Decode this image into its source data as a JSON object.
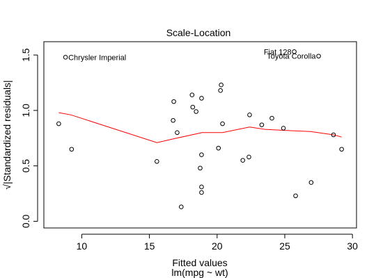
{
  "chart_data": {
    "type": "scatter",
    "title": "Scale-Location",
    "xlabel": "Fitted values",
    "xsublabel": "lm(mpg ~ wt)",
    "ylabel": "√|Standardized residuals|",
    "xlim": [
      7.2,
      30.3
    ],
    "ylim": [
      -0.06,
      1.62
    ],
    "x_ticks": [
      10,
      15,
      20,
      25,
      30
    ],
    "y_ticks": [
      0.0,
      0.5,
      1.0,
      1.5
    ],
    "y_tick_labels": [
      "0.0",
      "0.5",
      "1.0",
      "1.5"
    ],
    "points": [
      {
        "x": 8.3,
        "y": 0.88
      },
      {
        "x": 8.8,
        "y": 1.48,
        "label": "Chrysler Imperial"
      },
      {
        "x": 9.25,
        "y": 0.65
      },
      {
        "x": 15.55,
        "y": 0.54
      },
      {
        "x": 16.75,
        "y": 0.91
      },
      {
        "x": 16.8,
        "y": 1.08
      },
      {
        "x": 17.05,
        "y": 0.8
      },
      {
        "x": 17.35,
        "y": 0.13
      },
      {
        "x": 18.15,
        "y": 1.14
      },
      {
        "x": 18.2,
        "y": 1.03
      },
      {
        "x": 18.45,
        "y": 0.99
      },
      {
        "x": 18.75,
        "y": 0.48
      },
      {
        "x": 18.85,
        "y": 1.11
      },
      {
        "x": 18.85,
        "y": 0.6
      },
      {
        "x": 18.85,
        "y": 0.31
      },
      {
        "x": 18.85,
        "y": 0.26
      },
      {
        "x": 20.1,
        "y": 0.66
      },
      {
        "x": 20.25,
        "y": 1.18
      },
      {
        "x": 20.3,
        "y": 1.23
      },
      {
        "x": 20.4,
        "y": 0.88
      },
      {
        "x": 21.9,
        "y": 0.55
      },
      {
        "x": 22.35,
        "y": 0.58
      },
      {
        "x": 22.4,
        "y": 0.96
      },
      {
        "x": 23.3,
        "y": 0.87
      },
      {
        "x": 24.05,
        "y": 0.93
      },
      {
        "x": 24.9,
        "y": 0.84
      },
      {
        "x": 25.8,
        "y": 0.23
      },
      {
        "x": 25.7,
        "y": 1.53,
        "label": "Fiat 128"
      },
      {
        "x": 26.95,
        "y": 0.35
      },
      {
        "x": 27.5,
        "y": 1.49,
        "label": "Toyota Corolla"
      },
      {
        "x": 28.6,
        "y": 0.78
      },
      {
        "x": 29.2,
        "y": 0.65
      }
    ],
    "smooth_line": {
      "color": "#ff0000",
      "points": [
        [
          8.3,
          0.98
        ],
        [
          9.2,
          0.96
        ],
        [
          15.55,
          0.71
        ],
        [
          17.0,
          0.75
        ],
        [
          18.9,
          0.8
        ],
        [
          20.4,
          0.8
        ],
        [
          22.4,
          0.85
        ],
        [
          23.5,
          0.83
        ],
        [
          25.0,
          0.82
        ],
        [
          26.9,
          0.81
        ],
        [
          28.6,
          0.78
        ],
        [
          29.2,
          0.76
        ]
      ]
    },
    "grid": false
  }
}
